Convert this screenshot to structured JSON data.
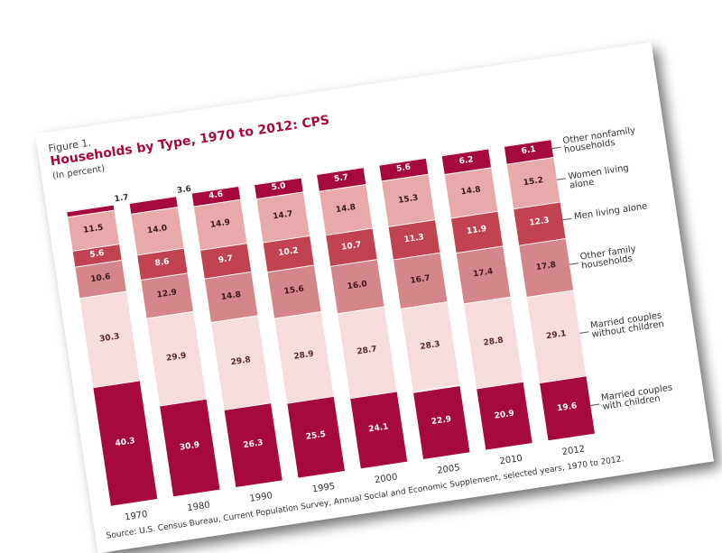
{
  "chart_data": {
    "type": "stacked-bar",
    "label": "Figure 1.",
    "title": "Households by Type, 1970 to 2012: CPS",
    "subtitle": "(In percent)",
    "source": "Source: U.S. Census Bureau, Current Population Survey, Annual Social and Economic Supplement, selected years, 1970 to 2012.",
    "categories": [
      "1970",
      "1980",
      "1990",
      "1995",
      "2000",
      "2005",
      "2010",
      "2012"
    ],
    "series": [
      {
        "name": "Married couples with children",
        "color": "#a6093d",
        "text_color": "#ffffff",
        "values": [
          40.3,
          30.9,
          26.3,
          25.5,
          24.1,
          22.9,
          20.9,
          19.6
        ]
      },
      {
        "name": "Married couples without children",
        "color": "#f6dcdc",
        "text_color": "#5a2a2a",
        "values": [
          30.3,
          29.9,
          29.8,
          28.9,
          28.7,
          28.3,
          28.8,
          29.1
        ]
      },
      {
        "name": "Other family households",
        "color": "#d5868b",
        "text_color": "#3a1a1a",
        "values": [
          10.6,
          12.9,
          14.8,
          15.6,
          16.0,
          16.7,
          17.4,
          17.8
        ],
        "value_labels": [
          "10.6",
          "12.9",
          "14.8",
          "15.6",
          "16.0",
          "16.7",
          "17.4",
          "17.8"
        ]
      },
      {
        "name": "Men living alone",
        "color": "#c1434f",
        "text_color": "#ffffff",
        "values": [
          5.6,
          8.6,
          9.7,
          10.2,
          10.7,
          11.3,
          11.9,
          12.3
        ]
      },
      {
        "name": "Women living alone",
        "color": "#e8a9aa",
        "text_color": "#3a1a1a",
        "values": [
          11.5,
          14.0,
          14.9,
          14.7,
          14.8,
          15.3,
          14.8,
          15.2
        ],
        "value_labels": [
          "11.5",
          "14.0",
          "14.9",
          "14.7",
          "14.8",
          "15.3",
          "14.8",
          "15.2"
        ]
      },
      {
        "name": "Other nonfamily households",
        "color": "#a6093d",
        "text_color": "#ffffff",
        "values": [
          1.7,
          3.6,
          4.6,
          5.0,
          5.7,
          5.6,
          6.2,
          6.1
        ],
        "value_labels": [
          "1.7",
          "3.6",
          "4.6",
          "5.0",
          "5.7",
          "5.6",
          "6.2",
          "6.1"
        ]
      }
    ]
  }
}
